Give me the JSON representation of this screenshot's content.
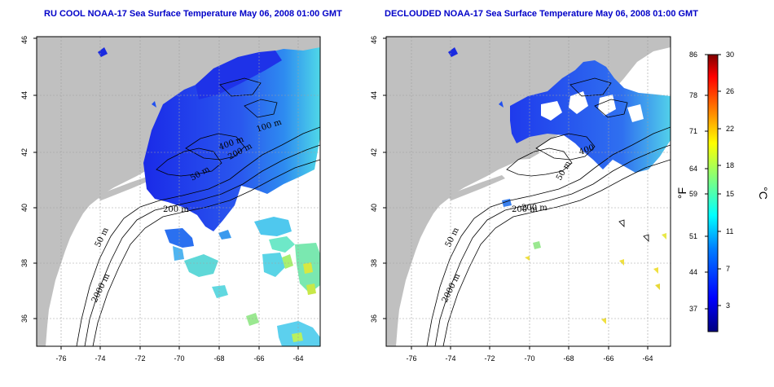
{
  "panels": [
    {
      "id": "left",
      "title": "RU COOL NOAA-17 Sea Surface Temperature May 06, 2008 01:00 GMT",
      "contour_labels": [
        "50 m",
        "200 m",
        "2000 m",
        "100 m",
        "50 m",
        "200 m",
        "400 m"
      ]
    },
    {
      "id": "right",
      "title": "DECLOUDED NOAA-17 Sea Surface Temperature May 06, 2008 01:00 GMT",
      "contour_labels": [
        "50 m",
        "200 m",
        "2000 m",
        "400",
        "50 m",
        "200 m"
      ]
    }
  ],
  "axes": {
    "x_ticks": [
      "-76",
      "-74",
      "-72",
      "-70",
      "-68",
      "-66",
      "-64"
    ],
    "y_ticks": [
      "36",
      "38",
      "40",
      "42",
      "44",
      "46"
    ],
    "grid": true
  },
  "colorbar": {
    "fahrenheit_ticks": [
      "86",
      "78",
      "71",
      "64",
      "59",
      "51",
      "44",
      "37"
    ],
    "celsius_ticks": [
      "30",
      "26",
      "22",
      "18",
      "15",
      "11",
      "7",
      "3"
    ],
    "left_unit": "°F",
    "right_unit": "°C",
    "colors": [
      "#00007f",
      "#0000ff",
      "#007fff",
      "#00ffff",
      "#7fff7f",
      "#ffff00",
      "#ff7f00",
      "#ff0000",
      "#7f0000"
    ]
  },
  "colors": {
    "land": "#c0c0c0",
    "ocean": "#ffffff",
    "title": "#0000c8",
    "cold_water": "#1e3cf0",
    "contour": "#000000"
  }
}
